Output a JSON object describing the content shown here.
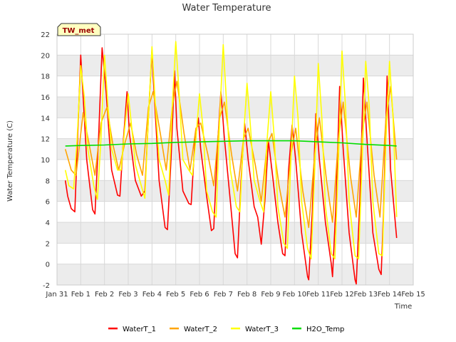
{
  "chart_data": {
    "type": "line",
    "title": "Water Temperature",
    "xlabel": "Time",
    "ylabel": "Water Temperature (C)",
    "site_label": "TW_met",
    "xlim": [
      0,
      15
    ],
    "ylim": [
      -2,
      22
    ],
    "x_ticks": [
      {
        "value": 0,
        "label": "Jan 31"
      },
      {
        "value": 1,
        "label": "Feb 1"
      },
      {
        "value": 2,
        "label": "Feb 2"
      },
      {
        "value": 3,
        "label": "Feb 3"
      },
      {
        "value": 4,
        "label": "Feb 4"
      },
      {
        "value": 5,
        "label": "Feb 5"
      },
      {
        "value": 6,
        "label": "Feb 6"
      },
      {
        "value": 7,
        "label": "Feb 7"
      },
      {
        "value": 8,
        "label": "Feb 8"
      },
      {
        "value": 9,
        "label": "Feb 9"
      },
      {
        "value": 10,
        "label": "Feb 10"
      },
      {
        "value": 11,
        "label": "Feb 11"
      },
      {
        "value": 12,
        "label": "Feb 12"
      },
      {
        "value": 13,
        "label": "Feb 13"
      },
      {
        "value": 14,
        "label": "Feb 14"
      },
      {
        "value": 15,
        "label": "Feb 15"
      }
    ],
    "y_ticks": [
      -2,
      0,
      2,
      4,
      6,
      8,
      10,
      12,
      14,
      16,
      18,
      20,
      22
    ],
    "series": [
      {
        "name": "WaterT_1",
        "color": "#ff0000",
        "x": [
          0.35,
          0.45,
          0.6,
          0.75,
          0.9,
          1.0,
          1.25,
          1.5,
          1.6,
          1.75,
          1.9,
          2.05,
          2.3,
          2.55,
          2.65,
          2.8,
          2.95,
          3.05,
          3.3,
          3.55,
          3.7,
          3.85,
          4.0,
          4.05,
          4.3,
          4.55,
          4.65,
          4.8,
          4.95,
          5.05,
          5.3,
          5.55,
          5.65,
          5.8,
          5.95,
          6.05,
          6.3,
          6.5,
          6.6,
          6.75,
          6.9,
          7.05,
          7.3,
          7.5,
          7.6,
          7.75,
          7.9,
          8.05,
          8.3,
          8.45,
          8.6,
          8.75,
          8.9,
          9.05,
          9.3,
          9.5,
          9.6,
          9.75,
          9.9,
          10.05,
          10.3,
          10.55,
          10.6,
          10.75,
          10.9,
          11.05,
          11.3,
          11.55,
          11.6,
          11.75,
          11.9,
          12.05,
          12.3,
          12.55,
          12.6,
          12.75,
          12.9,
          13.05,
          13.3,
          13.55,
          13.65,
          13.75,
          13.9,
          14.05,
          14.3
        ],
        "y": [
          8.0,
          6.5,
          5.3,
          5.0,
          14.0,
          20.0,
          10.0,
          5.2,
          4.8,
          12.0,
          20.7,
          17.0,
          9.0,
          6.6,
          6.5,
          12.0,
          16.5,
          12.5,
          8.0,
          6.5,
          7.0,
          14.0,
          20.5,
          18.0,
          8.0,
          3.5,
          3.3,
          10.0,
          18.5,
          13.0,
          7.0,
          5.8,
          5.7,
          11.5,
          14.0,
          11.0,
          6.5,
          3.2,
          3.4,
          11.0,
          16.5,
          12.0,
          6.0,
          1.0,
          0.6,
          8.0,
          13.5,
          10.0,
          5.5,
          4.5,
          1.9,
          6.0,
          11.8,
          9.0,
          4.0,
          1.0,
          0.8,
          9.0,
          13.3,
          10.0,
          3.0,
          -1.2,
          -1.5,
          5.0,
          14.4,
          10.0,
          4.0,
          0.0,
          -1.2,
          6.0,
          17.0,
          11.0,
          3.0,
          -1.5,
          -1.9,
          6.0,
          17.8,
          12.0,
          3.0,
          -0.5,
          -1.0,
          5.0,
          18.0,
          9.0,
          2.5
        ]
      },
      {
        "name": "WaterT_2",
        "color": "#ffa500",
        "x": [
          0.35,
          0.6,
          0.8,
          1.1,
          1.35,
          1.6,
          1.85,
          2.1,
          2.35,
          2.6,
          2.85,
          3.1,
          3.35,
          3.6,
          3.85,
          4.05,
          4.35,
          4.6,
          4.85,
          5.05,
          5.35,
          5.6,
          5.85,
          6.05,
          6.35,
          6.6,
          6.85,
          7.05,
          7.35,
          7.6,
          7.85,
          8.05,
          8.35,
          8.6,
          8.85,
          9.05,
          9.35,
          9.6,
          9.85,
          10.05,
          10.35,
          10.6,
          10.85,
          11.05,
          11.35,
          11.6,
          11.85,
          12.05,
          12.35,
          12.6,
          12.85,
          13.05,
          13.35,
          13.6,
          13.85,
          14.05,
          14.3
        ],
        "y": [
          11.0,
          9.0,
          8.5,
          14.5,
          11.5,
          8.5,
          13.5,
          15.0,
          11.5,
          9.0,
          11.5,
          13.5,
          10.5,
          8.5,
          15.0,
          16.5,
          12.5,
          9.0,
          15.0,
          17.5,
          12.5,
          9.0,
          13.0,
          13.5,
          10.5,
          7.5,
          14.0,
          15.5,
          10.5,
          7.0,
          12.0,
          13.0,
          9.5,
          6.0,
          11.5,
          12.5,
          7.5,
          4.5,
          10.5,
          13.0,
          7.0,
          3.5,
          10.5,
          14.0,
          8.0,
          4.0,
          12.0,
          15.5,
          8.5,
          4.5,
          12.5,
          15.5,
          8.5,
          4.5,
          14.0,
          17.0,
          10.0
        ]
      },
      {
        "name": "WaterT_3",
        "color": "#ffff00",
        "x": [
          0.35,
          0.5,
          0.7,
          0.85,
          1.0,
          1.15,
          1.3,
          1.55,
          1.7,
          1.85,
          2.0,
          2.15,
          2.3,
          2.55,
          2.7,
          2.85,
          3.0,
          3.15,
          3.3,
          3.55,
          3.7,
          3.85,
          4.0,
          4.15,
          4.3,
          4.55,
          4.7,
          4.85,
          5.0,
          5.15,
          5.3,
          5.55,
          5.7,
          5.85,
          6.0,
          6.15,
          6.3,
          6.55,
          6.7,
          6.85,
          7.0,
          7.15,
          7.3,
          7.55,
          7.7,
          7.85,
          8.0,
          8.15,
          8.3,
          8.55,
          8.7,
          8.85,
          9.0,
          9.15,
          9.3,
          9.55,
          9.7,
          9.85,
          10.0,
          10.15,
          10.3,
          10.55,
          10.7,
          10.85,
          11.0,
          11.15,
          11.3,
          11.55,
          11.7,
          11.85,
          12.0,
          12.15,
          12.3,
          12.55,
          12.7,
          12.85,
          13.0,
          13.15,
          13.3,
          13.55,
          13.7,
          13.85,
          14.0,
          14.15,
          14.3
        ],
        "y": [
          9.0,
          7.5,
          7.2,
          12.0,
          19.0,
          16.0,
          11.0,
          7.5,
          6.2,
          12.0,
          20.0,
          15.0,
          11.0,
          9.0,
          9.0,
          13.0,
          16.3,
          13.0,
          9.5,
          7.5,
          6.3,
          14.0,
          20.8,
          15.0,
          10.0,
          8.0,
          6.6,
          15.0,
          21.3,
          16.0,
          10.0,
          9.0,
          8.5,
          12.0,
          16.3,
          13.0,
          7.0,
          5.0,
          4.5,
          14.0,
          21.0,
          15.0,
          9.0,
          5.5,
          5.0,
          12.0,
          17.3,
          13.0,
          8.0,
          6.0,
          5.0,
          12.0,
          16.5,
          12.0,
          5.5,
          2.0,
          1.5,
          10.0,
          18.0,
          14.0,
          6.0,
          1.5,
          0.5,
          9.0,
          19.2,
          14.0,
          5.5,
          1.0,
          0.5,
          10.0,
          20.4,
          15.0,
          6.0,
          0.8,
          0.5,
          10.0,
          19.4,
          15.0,
          6.0,
          1.0,
          0.8,
          12.0,
          19.4,
          14.0,
          4.5
        ]
      },
      {
        "name": "H2O_Temp",
        "color": "#00dd00",
        "x": [
          0.35,
          1.0,
          2.0,
          3.0,
          4.0,
          5.0,
          6.0,
          7.0,
          8.0,
          9.0,
          10.0,
          11.0,
          12.0,
          13.0,
          14.0,
          14.3
        ],
        "y": [
          11.3,
          11.35,
          11.4,
          11.5,
          11.55,
          11.65,
          11.7,
          11.75,
          11.8,
          11.8,
          11.8,
          11.7,
          11.6,
          11.45,
          11.35,
          11.3
        ]
      }
    ]
  }
}
